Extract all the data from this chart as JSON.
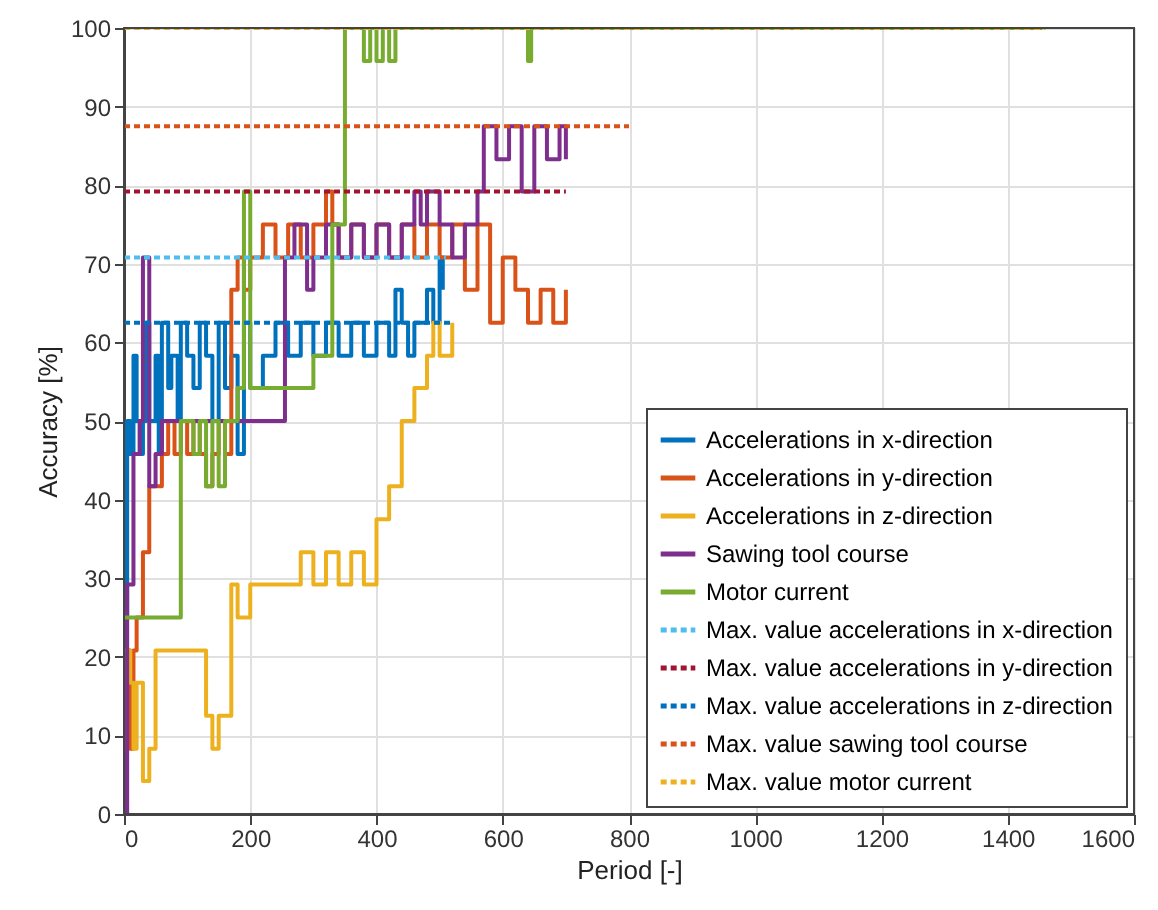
{
  "chart_data": {
    "type": "step",
    "xlabel": "Period [-]",
    "ylabel": "Accuracy [%]",
    "xlim": [
      0,
      1600
    ],
    "xticks": [
      0,
      200,
      400,
      600,
      800,
      1000,
      1200,
      1400,
      1600
    ],
    "ylim": [
      0,
      100
    ],
    "yticks": [
      0,
      10,
      20,
      30,
      40,
      50,
      60,
      70,
      80,
      90,
      100
    ],
    "grid": true,
    "legend": "bottom right",
    "series": [
      {
        "name": "Accelerations in x-direction",
        "color": "#0072bd",
        "x": [
          0,
          5,
          10,
          15,
          20,
          25,
          30,
          35,
          40,
          50,
          55,
          60,
          70,
          75,
          85,
          90,
          100,
          110,
          120,
          130,
          140,
          150,
          160,
          170,
          180,
          190,
          200,
          220,
          240,
          260,
          280,
          300,
          320,
          340,
          360,
          380,
          400,
          420,
          430,
          440,
          450,
          460,
          480,
          490,
          500,
          505
        ],
        "values": [
          25,
          50,
          45.8,
          58.3,
          50,
          45.8,
          50,
          62.5,
          50,
          58.3,
          45.8,
          62.5,
          54.2,
          58.3,
          50,
          62.5,
          58.3,
          54.2,
          62.5,
          58.3,
          50,
          62.5,
          54.2,
          58.3,
          45.8,
          62.5,
          54.2,
          58.3,
          62.5,
          58.3,
          62.5,
          58.3,
          62.5,
          58.3,
          62.5,
          58.3,
          62.5,
          58.3,
          66.7,
          62.5,
          58.3,
          62.5,
          66.7,
          62.5,
          70.8,
          66.7
        ]
      },
      {
        "name": "Accelerations in y-direction",
        "color": "#d95319",
        "x": [
          0,
          5,
          10,
          15,
          20,
          30,
          40,
          60,
          70,
          80,
          90,
          100,
          110,
          120,
          130,
          140,
          150,
          160,
          170,
          180,
          190,
          200,
          220,
          240,
          260,
          280,
          300,
          320,
          330,
          340,
          360,
          380,
          400,
          420,
          440,
          460,
          480,
          500,
          520,
          540,
          560,
          580,
          600,
          620,
          640,
          660,
          680,
          700
        ],
        "values": [
          8.3,
          20.8,
          8.3,
          20.8,
          25,
          33.3,
          41.7,
          45.8,
          50,
          45.8,
          50,
          45.8,
          50,
          45.8,
          41.7,
          45.8,
          50,
          45.8,
          66.7,
          70.8,
          66.7,
          70.8,
          75,
          70.8,
          75,
          70.8,
          75,
          79.2,
          75,
          70.8,
          75,
          70.8,
          75,
          70.8,
          75,
          70.8,
          75,
          70.8,
          75,
          66.7,
          75,
          62.5,
          70.8,
          66.7,
          62.5,
          66.7,
          62.5,
          66.7
        ]
      },
      {
        "name": "Accelerations in z-direction",
        "color": "#edb120",
        "x": [
          0,
          10,
          15,
          20,
          30,
          40,
          50,
          130,
          140,
          150,
          170,
          180,
          200,
          280,
          300,
          320,
          340,
          360,
          380,
          400,
          420,
          440,
          460,
          480,
          490,
          500,
          520
        ],
        "values": [
          20.8,
          16.7,
          8.3,
          16.7,
          4.2,
          8.3,
          20.8,
          12.5,
          8.3,
          12.5,
          29.2,
          25,
          29.2,
          33.3,
          29.2,
          33.3,
          29.2,
          33.3,
          29.2,
          37.5,
          41.7,
          50,
          54.2,
          58.3,
          62.5,
          58.3,
          62.5
        ]
      },
      {
        "name": "Sawing tool course",
        "color": "#7e2f8e",
        "x": [
          0,
          5,
          15,
          25,
          30,
          40,
          50,
          60,
          240,
          255,
          270,
          290,
          300,
          320,
          340,
          360,
          380,
          400,
          420,
          440,
          460,
          470,
          480,
          500,
          520,
          540,
          560,
          570,
          590,
          610,
          630,
          650,
          670,
          690,
          700
        ],
        "values": [
          0,
          29.2,
          45.8,
          50,
          70.8,
          41.7,
          45.8,
          50,
          50,
          70.8,
          75,
          66.7,
          70.8,
          75,
          70.8,
          75,
          70.8,
          75,
          70.8,
          75,
          79.2,
          75,
          79.2,
          75,
          70.8,
          75,
          79.2,
          87.5,
          83.3,
          87.5,
          79.2,
          87.5,
          83.3,
          87.5,
          83.3
        ]
      },
      {
        "name": "Motor current",
        "color": "#77ac30",
        "x": [
          0,
          80,
          90,
          110,
          120,
          130,
          140,
          150,
          160,
          180,
          190,
          200,
          220,
          240,
          260,
          280,
          300,
          330,
          350,
          360,
          380,
          390,
          400,
          410,
          420,
          430,
          640,
          645,
          1455
        ],
        "values": [
          25,
          25,
          50,
          45.8,
          50,
          41.7,
          50,
          41.7,
          50,
          54.2,
          79.2,
          54.2,
          54.2,
          54.2,
          54.2,
          54.2,
          58.3,
          75,
          100,
          100,
          95.8,
          100,
          95.8,
          100,
          95.8,
          100,
          95.8,
          100,
          100
        ]
      },
      {
        "name": "Max. value accelerations in x-direction",
        "type": "line",
        "line_style": "dotted",
        "color": "#4dbeee",
        "x": [
          0,
          510
        ],
        "values": [
          70.8,
          70.8
        ]
      },
      {
        "name": "Max. value accelerations in y-direction",
        "type": "line",
        "line_style": "dotted",
        "color": "#a2142f",
        "x": [
          0,
          700
        ],
        "values": [
          79.2,
          79.2
        ]
      },
      {
        "name": "Max. value accelerations in z-direction",
        "type": "line",
        "line_style": "dotted",
        "color": "#0072bd",
        "x": [
          0,
          520
        ],
        "values": [
          62.5,
          62.5
        ]
      },
      {
        "name": "Max. value sawing tool course",
        "type": "line",
        "line_style": "dotted",
        "color": "#d95319",
        "x": [
          0,
          800
        ],
        "values": [
          87.5,
          87.5
        ]
      },
      {
        "name": "Max. value motor current",
        "type": "line",
        "line_style": "dotted",
        "color": "#edb120",
        "x": [
          0,
          1460
        ],
        "values": [
          100,
          100
        ]
      }
    ]
  }
}
